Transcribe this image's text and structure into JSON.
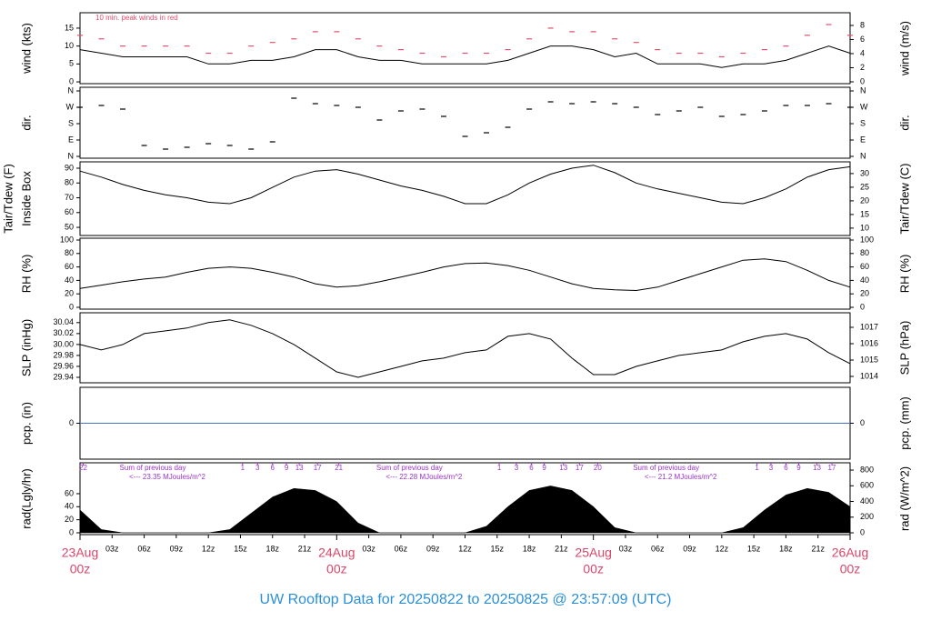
{
  "title": "UW Rooftop Data for 20250822  to  20250825 @ 23:57:09  (UTC)",
  "xaxis": {
    "xlim": [
      0,
      72
    ],
    "ticks": [
      {
        "value": 3,
        "label": "03z"
      },
      {
        "value": 6,
        "label": "06z"
      },
      {
        "value": 9,
        "label": "09z"
      },
      {
        "value": 12,
        "label": "12z"
      },
      {
        "value": 15,
        "label": "15z"
      },
      {
        "value": 18,
        "label": "18z"
      },
      {
        "value": 21,
        "label": "21z"
      },
      {
        "value": 27,
        "label": "03z"
      },
      {
        "value": 30,
        "label": "06z"
      },
      {
        "value": 33,
        "label": "09z"
      },
      {
        "value": 36,
        "label": "12z"
      },
      {
        "value": 39,
        "label": "15z"
      },
      {
        "value": 42,
        "label": "18z"
      },
      {
        "value": 45,
        "label": "21z"
      },
      {
        "value": 51,
        "label": "03z"
      },
      {
        "value": 54,
        "label": "06z"
      },
      {
        "value": 57,
        "label": "09z"
      },
      {
        "value": 60,
        "label": "12z"
      },
      {
        "value": 63,
        "label": "15z"
      },
      {
        "value": 66,
        "label": "18z"
      },
      {
        "value": 69,
        "label": "21z"
      }
    ],
    "days": [
      {
        "value": 0,
        "label": "23Aug",
        "sub": "00z"
      },
      {
        "value": 24,
        "label": "24Aug",
        "sub": "00z"
      },
      {
        "value": 48,
        "label": "25Aug",
        "sub": "00z"
      },
      {
        "value": 72,
        "label": "26Aug",
        "sub": "00z"
      }
    ]
  },
  "chart_data": [
    {
      "type": "line",
      "ylabel": "wind (kts)",
      "y2label": "wind (m/s)",
      "note": "10 min. peak winds in red",
      "ylim": [
        -0.5,
        19.3
      ],
      "yticks": [
        0,
        5,
        10,
        15
      ],
      "y2lim": [
        -0.26,
        9.8
      ],
      "y2ticks": [
        0,
        2,
        4,
        6,
        8
      ],
      "x": [
        0,
        2,
        4,
        6,
        8,
        10,
        12,
        14,
        16,
        18,
        20,
        22,
        24,
        26,
        28,
        30,
        32,
        34,
        36,
        38,
        40,
        42,
        44,
        46,
        48,
        50,
        52,
        54,
        56,
        58,
        60,
        62,
        64,
        66,
        68,
        70,
        72
      ],
      "series": [
        {
          "color": "#000000",
          "mark": "line",
          "values": [
            9,
            8,
            7,
            7,
            7,
            7,
            5,
            5,
            6,
            6,
            7,
            9,
            9,
            7,
            6,
            6,
            5,
            5,
            5,
            5,
            6,
            8,
            10,
            10,
            9,
            7,
            8,
            5,
            5,
            5,
            4,
            5,
            5,
            6,
            8,
            10,
            8
          ]
        },
        {
          "color": "#e0506e",
          "mark": "dash",
          "values": [
            13,
            12,
            10,
            10,
            10,
            10,
            8,
            8,
            10,
            11,
            12,
            14,
            14,
            12,
            10,
            9,
            8,
            7,
            8,
            8,
            9,
            12,
            15,
            14,
            14,
            12,
            11,
            9,
            8,
            8,
            7,
            8,
            9,
            10,
            13,
            16,
            13
          ]
        }
      ]
    },
    {
      "type": "scatter",
      "ylabel": "dir.",
      "y2label": "dir.",
      "ylim": [
        -10,
        380
      ],
      "yticks": [
        {
          "value": 0,
          "label": "N"
        },
        {
          "value": 90,
          "label": "E"
        },
        {
          "value": 180,
          "label": "S"
        },
        {
          "value": 270,
          "label": "W"
        },
        {
          "value": 360,
          "label": "N"
        }
      ],
      "y2lim": [
        -10,
        380
      ],
      "y2ticks": [
        {
          "value": 0,
          "label": "N"
        },
        {
          "value": 90,
          "label": "E"
        },
        {
          "value": 180,
          "label": "S"
        },
        {
          "value": 270,
          "label": "W"
        },
        {
          "value": 360,
          "label": "N"
        }
      ],
      "x": [
        0,
        2,
        4,
        6,
        8,
        10,
        12,
        14,
        16,
        18,
        20,
        22,
        24,
        26,
        28,
        30,
        32,
        34,
        36,
        38,
        40,
        42,
        44,
        46,
        48,
        50,
        52,
        54,
        56,
        58,
        60,
        62,
        64,
        66,
        68,
        70,
        72
      ],
      "series": [
        {
          "color": "#000000",
          "mark": "dash",
          "values": [
            270,
            280,
            260,
            60,
            40,
            50,
            70,
            60,
            40,
            80,
            320,
            290,
            280,
            270,
            200,
            250,
            260,
            220,
            110,
            130,
            160,
            260,
            300,
            290,
            300,
            290,
            270,
            230,
            250,
            270,
            220,
            230,
            250,
            280,
            280,
            290,
            270
          ]
        }
      ]
    },
    {
      "type": "line",
      "ylabel": "Inside Box",
      "ylabel_outer": "Tair/Tdew (F)",
      "y2label": "Tair/Tdew (C)",
      "ylim": [
        44.5,
        94.3
      ],
      "yticks": [
        50,
        60,
        70,
        80,
        90
      ],
      "y2lim": [
        7.3,
        34.3
      ],
      "y2ticks": [
        10,
        15,
        20,
        25,
        30
      ],
      "x": [
        0,
        2,
        4,
        6,
        8,
        10,
        12,
        14,
        16,
        18,
        20,
        22,
        24,
        26,
        28,
        30,
        32,
        34,
        36,
        38,
        40,
        42,
        44,
        46,
        48,
        50,
        52,
        54,
        56,
        58,
        60,
        62,
        64,
        66,
        68,
        70,
        72
      ],
      "series": [
        {
          "color": "#000000",
          "mark": "line",
          "values": [
            88,
            84,
            79,
            75,
            72,
            70,
            67,
            66,
            70,
            77,
            84,
            88,
            89,
            86,
            82,
            78,
            75,
            71,
            66,
            66,
            72,
            80,
            86,
            90,
            92,
            87,
            80,
            76,
            73,
            70,
            67,
            66,
            70,
            76,
            84,
            89,
            91
          ]
        }
      ]
    },
    {
      "type": "line",
      "ylabel": "RH (%)",
      "y2label": "RH (%)",
      "ylim": [
        -2.7,
        102.7
      ],
      "yticks": [
        0,
        20,
        40,
        60,
        80,
        100
      ],
      "y2lim": [
        -2.7,
        102.7
      ],
      "y2ticks": [
        0,
        20,
        40,
        60,
        80,
        100
      ],
      "x": [
        0,
        2,
        4,
        6,
        8,
        10,
        12,
        14,
        16,
        18,
        20,
        22,
        24,
        26,
        28,
        30,
        32,
        34,
        36,
        38,
        40,
        42,
        44,
        46,
        48,
        50,
        52,
        54,
        56,
        58,
        60,
        62,
        64,
        66,
        68,
        70,
        72
      ],
      "series": [
        {
          "color": "#000000",
          "mark": "line",
          "values": [
            28,
            33,
            38,
            42,
            45,
            52,
            58,
            60,
            58,
            52,
            45,
            35,
            30,
            32,
            38,
            45,
            52,
            60,
            65,
            66,
            62,
            55,
            45,
            35,
            28,
            26,
            25,
            30,
            40,
            50,
            60,
            70,
            72,
            68,
            55,
            40,
            30
          ]
        }
      ]
    },
    {
      "type": "line",
      "ylabel": "SLP (inHg)",
      "y2label": "SLP (hPa)",
      "ylim": [
        29.93,
        30.058
      ],
      "yticks": [
        29.94,
        29.96,
        29.98,
        {
          "value": 30,
          "label": "30.00"
        },
        30.02,
        30.04
      ],
      "y2lim": [
        1013.61,
        1017.89
      ],
      "y2ticks": [
        1014,
        1015,
        1016,
        1017
      ],
      "x": [
        0,
        2,
        4,
        6,
        8,
        10,
        12,
        14,
        16,
        18,
        20,
        22,
        24,
        26,
        28,
        30,
        32,
        34,
        36,
        38,
        40,
        42,
        44,
        46,
        48,
        50,
        52,
        54,
        56,
        58,
        60,
        62,
        64,
        66,
        68,
        70,
        72
      ],
      "series": [
        {
          "color": "#000000",
          "mark": "line",
          "values": [
            30.0,
            29.99,
            30.0,
            30.02,
            30.025,
            30.03,
            30.04,
            30.045,
            30.035,
            30.02,
            30.0,
            29.975,
            29.95,
            29.94,
            29.95,
            29.96,
            29.97,
            29.975,
            29.985,
            29.99,
            30.015,
            30.02,
            30.01,
            29.975,
            29.945,
            29.945,
            29.96,
            29.97,
            29.98,
            29.985,
            29.99,
            30.005,
            30.015,
            30.02,
            30.01,
            29.985,
            29.965
          ]
        }
      ]
    },
    {
      "type": "line",
      "ylabel": "pcp. (in)",
      "y2label": "pcp. (mm)",
      "ylim": [
        -1,
        1
      ],
      "yticks": [
        0
      ],
      "y2lim": [
        -1,
        1
      ],
      "y2ticks": [
        0
      ],
      "x": [
        0,
        72
      ],
      "series": [
        {
          "color": "#4472c4",
          "mark": "line",
          "values": [
            0,
            0
          ]
        }
      ]
    },
    {
      "type": "area",
      "ylabel": "rad(Lgly/hr)",
      "y2label": "rad (W/m^2)",
      "ylim": [
        -2.8,
        107.4
      ],
      "yticks": [
        0,
        20,
        40,
        60
      ],
      "y2lim": [
        -23,
        893
      ],
      "y2ticks": [
        0,
        200,
        400,
        600,
        800
      ],
      "x": [
        0,
        2,
        4,
        6,
        8,
        10,
        12,
        14,
        16,
        18,
        20,
        22,
        24,
        26,
        28,
        30,
        32,
        34,
        36,
        38,
        40,
        42,
        44,
        46,
        48,
        50,
        52,
        54,
        56,
        58,
        60,
        62,
        64,
        66,
        68,
        70,
        72
      ],
      "series": [
        {
          "color": "#000000",
          "mark": "area",
          "values": [
            35,
            5,
            0,
            0,
            0,
            0,
            0,
            5,
            30,
            55,
            68,
            65,
            48,
            15,
            0,
            0,
            0,
            0,
            0,
            10,
            40,
            65,
            72,
            65,
            40,
            8,
            0,
            0,
            0,
            0,
            0,
            8,
            35,
            58,
            68,
            62,
            40
          ]
        }
      ],
      "notes": [
        {
          "title": "Sum of previous day",
          "text": "<--- 23.35 MJoules/m^2"
        },
        {
          "title": "Sum of previous day",
          "text": "<--- 22.28 MJoules/m^2"
        },
        {
          "title": "Sum of previous day",
          "text": "<--- 21.2 MJoules/m^2"
        }
      ],
      "hour_marks": [
        {
          "value": 0.3,
          "label": "22"
        },
        {
          "value": 15.2,
          "label": "1"
        },
        {
          "value": 16.6,
          "label": "3"
        },
        {
          "value": 18.0,
          "label": "6"
        },
        {
          "value": 19.3,
          "label": "9"
        },
        {
          "value": 20.5,
          "label": "13"
        },
        {
          "value": 22.2,
          "label": "17"
        },
        {
          "value": 24.2,
          "label": "21"
        },
        {
          "value": 39.2,
          "label": "1"
        },
        {
          "value": 40.8,
          "label": "3"
        },
        {
          "value": 42.2,
          "label": "6"
        },
        {
          "value": 43.4,
          "label": "9"
        },
        {
          "value": 45.2,
          "label": "13"
        },
        {
          "value": 46.7,
          "label": "17"
        },
        {
          "value": 48.4,
          "label": "20"
        },
        {
          "value": 63.3,
          "label": "1"
        },
        {
          "value": 64.6,
          "label": "3"
        },
        {
          "value": 66.0,
          "label": "6"
        },
        {
          "value": 67.2,
          "label": "9"
        },
        {
          "value": 68.9,
          "label": "13"
        },
        {
          "value": 70.3,
          "label": "17"
        }
      ]
    }
  ]
}
